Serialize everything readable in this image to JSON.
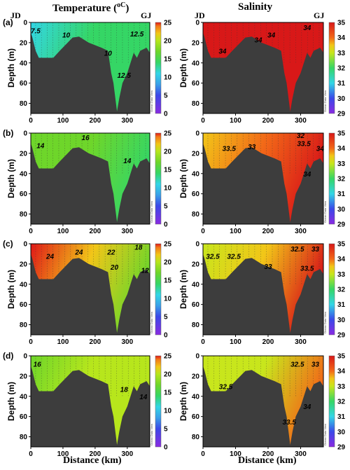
{
  "column_titles": {
    "temperature": "Temperature (",
    "temperature_unit": "oC",
    "temperature_close": ")",
    "salinity": "Salinity"
  },
  "x_axis_label": "Distance (km)",
  "y_axis_label": "Depth (m)",
  "station_labels": {
    "start": "JD",
    "end": "GJ"
  },
  "watermark": "Ocean Data View",
  "chart_data": [
    {
      "panel": "(a)",
      "variable": "temperature",
      "type": "heatmap",
      "xlim": [
        0,
        370
      ],
      "ylim": [
        90,
        0
      ],
      "xticks": [
        0,
        100,
        200,
        300
      ],
      "yticks": [
        0,
        20,
        40,
        60,
        80
      ],
      "colorbar": {
        "min": 0,
        "max": 25,
        "ticks": [
          0,
          5,
          10,
          15,
          20,
          25
        ]
      },
      "contour_labels": [
        {
          "x": 15,
          "y": 8,
          "text": "7.5"
        },
        {
          "x": 110,
          "y": 12,
          "text": "10"
        },
        {
          "x": 240,
          "y": 30,
          "text": "10"
        },
        {
          "x": 330,
          "y": 11,
          "text": "12.5"
        },
        {
          "x": 290,
          "y": 52,
          "text": "12.5"
        }
      ]
    },
    {
      "panel": "(a)",
      "variable": "salinity",
      "type": "heatmap",
      "xlim": [
        0,
        370
      ],
      "ylim": [
        90,
        0
      ],
      "xticks": [
        0,
        100,
        200,
        300
      ],
      "yticks": [
        0,
        20,
        40,
        60,
        80
      ],
      "colorbar": {
        "min": 29,
        "max": 35,
        "ticks": [
          29,
          30,
          31,
          32,
          33,
          34,
          35
        ]
      },
      "contour_labels": [
        {
          "x": 60,
          "y": 28,
          "text": "34"
        },
        {
          "x": 170,
          "y": 17,
          "text": "34"
        },
        {
          "x": 210,
          "y": 12,
          "text": "34"
        },
        {
          "x": 320,
          "y": 5,
          "text": "34"
        }
      ]
    },
    {
      "panel": "(b)",
      "variable": "temperature",
      "type": "heatmap",
      "xlim": [
        0,
        370
      ],
      "ylim": [
        90,
        0
      ],
      "xticks": [
        0,
        100,
        200,
        300
      ],
      "yticks": [
        0,
        20,
        40,
        60,
        80
      ],
      "colorbar": {
        "min": 0,
        "max": 25,
        "ticks": [
          0,
          5,
          10,
          15,
          20,
          25
        ]
      },
      "contour_labels": [
        {
          "x": 30,
          "y": 12,
          "text": "14"
        },
        {
          "x": 170,
          "y": 4,
          "text": "16"
        },
        {
          "x": 300,
          "y": 27,
          "text": "14"
        }
      ]
    },
    {
      "panel": "(b)",
      "variable": "salinity",
      "type": "heatmap",
      "xlim": [
        0,
        370
      ],
      "ylim": [
        90,
        0
      ],
      "xticks": [
        0,
        100,
        200,
        300
      ],
      "yticks": [
        0,
        20,
        40,
        60,
        80
      ],
      "colorbar": {
        "min": 29,
        "max": 35,
        "ticks": [
          29,
          30,
          31,
          32,
          33,
          34,
          35
        ]
      },
      "contour_labels": [
        {
          "x": 80,
          "y": 15,
          "text": "33.5"
        },
        {
          "x": 150,
          "y": 13,
          "text": "33"
        },
        {
          "x": 300,
          "y": 2,
          "text": "32"
        },
        {
          "x": 310,
          "y": 10,
          "text": "33.5"
        },
        {
          "x": 360,
          "y": 15,
          "text": "34"
        },
        {
          "x": 320,
          "y": 40,
          "text": "34"
        }
      ]
    },
    {
      "panel": "(c)",
      "variable": "temperature",
      "type": "heatmap",
      "xlim": [
        0,
        370
      ],
      "ylim": [
        90,
        0
      ],
      "xticks": [
        0,
        100,
        200,
        300
      ],
      "yticks": [
        0,
        20,
        40,
        60,
        80
      ],
      "colorbar": {
        "min": 0,
        "max": 25,
        "ticks": [
          0,
          5,
          10,
          15,
          20,
          25
        ]
      },
      "contour_labels": [
        {
          "x": 60,
          "y": 12,
          "text": "24"
        },
        {
          "x": 150,
          "y": 8,
          "text": "24"
        },
        {
          "x": 250,
          "y": 8,
          "text": "22"
        },
        {
          "x": 260,
          "y": 23,
          "text": "20"
        },
        {
          "x": 335,
          "y": 3,
          "text": "18"
        },
        {
          "x": 355,
          "y": 26,
          "text": "12"
        }
      ]
    },
    {
      "panel": "(c)",
      "variable": "salinity",
      "type": "heatmap",
      "xlim": [
        0,
        370
      ],
      "ylim": [
        90,
        0
      ],
      "xticks": [
        0,
        100,
        200,
        300
      ],
      "yticks": [
        0,
        20,
        40,
        60,
        80
      ],
      "colorbar": {
        "min": 29,
        "max": 35,
        "ticks": [
          29,
          30,
          31,
          32,
          33,
          34,
          35
        ]
      },
      "contour_labels": [
        {
          "x": 30,
          "y": 12,
          "text": "32.5"
        },
        {
          "x": 95,
          "y": 12,
          "text": "32.5"
        },
        {
          "x": 200,
          "y": 22,
          "text": "33"
        },
        {
          "x": 290,
          "y": 5,
          "text": "32.5"
        },
        {
          "x": 345,
          "y": 5,
          "text": "33"
        },
        {
          "x": 320,
          "y": 24,
          "text": "33.5"
        }
      ]
    },
    {
      "panel": "(d)",
      "variable": "temperature",
      "type": "heatmap",
      "xlim": [
        0,
        370
      ],
      "ylim": [
        90,
        0
      ],
      "xticks": [
        0,
        100,
        200,
        300
      ],
      "yticks": [
        0,
        20,
        40,
        60,
        80
      ],
      "colorbar": {
        "min": 0,
        "max": 25,
        "ticks": [
          0,
          5,
          10,
          15,
          20,
          25
        ]
      },
      "contour_labels": [
        {
          "x": 20,
          "y": 8,
          "text": "16"
        },
        {
          "x": 290,
          "y": 33,
          "text": "18"
        },
        {
          "x": 350,
          "y": 40,
          "text": "14"
        }
      ]
    },
    {
      "panel": "(d)",
      "variable": "salinity",
      "type": "heatmap",
      "xlim": [
        0,
        370
      ],
      "ylim": [
        90,
        0
      ],
      "xticks": [
        0,
        100,
        200,
        300
      ],
      "yticks": [
        0,
        20,
        40,
        60,
        80
      ],
      "colorbar": {
        "min": 29,
        "max": 35,
        "ticks": [
          29,
          30,
          31,
          32,
          33,
          34,
          35
        ]
      },
      "contour_labels": [
        {
          "x": 70,
          "y": 30,
          "text": "32.5"
        },
        {
          "x": 290,
          "y": 8,
          "text": "32.5"
        },
        {
          "x": 345,
          "y": 8,
          "text": "33"
        },
        {
          "x": 320,
          "y": 50,
          "text": "34"
        },
        {
          "x": 265,
          "y": 65,
          "text": "33.5"
        }
      ]
    }
  ]
}
